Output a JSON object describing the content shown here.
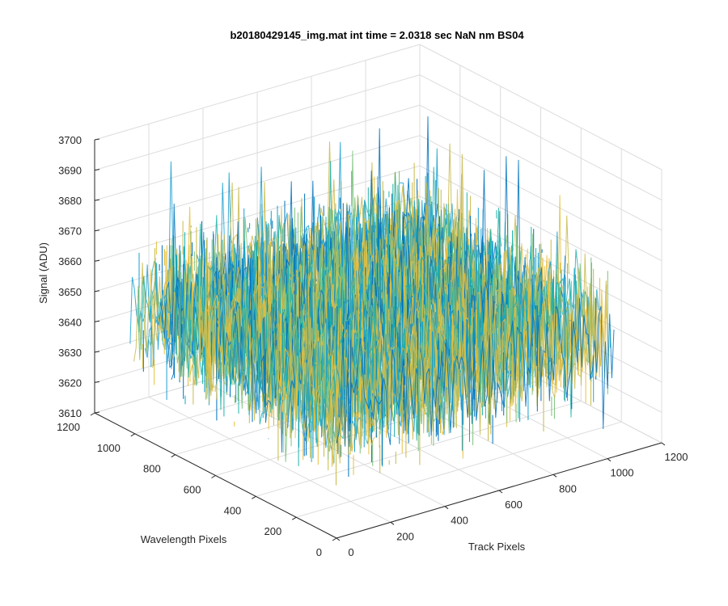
{
  "chart_data": {
    "type": "surface",
    "title": "b20180429145_img.mat int time = 2.0318 sec  NaN nm BS04",
    "xlabel": "Track Pixels",
    "ylabel": "Wavelength Pixels",
    "zlabel": "Signal (ADU)",
    "xlim": [
      0,
      1200
    ],
    "ylim": [
      0,
      1200
    ],
    "zlim": [
      3610,
      3700
    ],
    "x_ticks": [
      0,
      200,
      400,
      600,
      800,
      1000,
      1200
    ],
    "y_ticks": [
      0,
      200,
      400,
      600,
      800,
      1000,
      1200
    ],
    "z_ticks": [
      3610,
      3620,
      3630,
      3640,
      3650,
      3660,
      3670,
      3680,
      3690,
      3700
    ],
    "grid": true,
    "view": {
      "azimuth": -37.5,
      "elevation": 30
    },
    "data_extent": {
      "x": [
        0,
        1024
      ],
      "y": [
        0,
        1024
      ]
    },
    "signal_summary": {
      "mean": 3650,
      "min": 3613,
      "max": 3695
    },
    "colormap": [
      "#0072bd",
      "#1a9fd0",
      "#20b2aa",
      "#7ec27e",
      "#c9b94a",
      "#e6c040"
    ]
  }
}
